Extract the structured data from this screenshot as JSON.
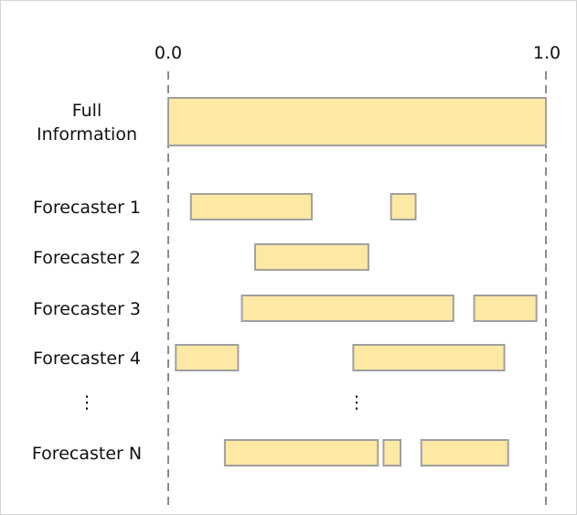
{
  "axis": {
    "left_label": "0.0",
    "right_label": "1.0"
  },
  "colors": {
    "bar_fill": "#fde8a4",
    "bar_stroke": "#a0a0a0",
    "guide": "#8c8c8c"
  },
  "rows": [
    {
      "label_lines": [
        "Full",
        "Information"
      ],
      "intervals": [
        [
          0.0,
          1.0
        ]
      ]
    },
    {
      "label_lines": [
        "Forecaster 1"
      ],
      "intervals": [
        [
          0.06,
          0.38
        ],
        [
          0.59,
          0.655
        ]
      ]
    },
    {
      "label_lines": [
        "Forecaster 2"
      ],
      "intervals": [
        [
          0.23,
          0.53
        ]
      ]
    },
    {
      "label_lines": [
        "Forecaster 3"
      ],
      "intervals": [
        [
          0.195,
          0.755
        ],
        [
          0.81,
          0.975
        ]
      ]
    },
    {
      "label_lines": [
        "Forecaster 4"
      ],
      "intervals": [
        [
          0.02,
          0.185
        ],
        [
          0.49,
          0.89
        ]
      ]
    },
    {
      "label_lines": [
        "⋮"
      ],
      "intervals": [],
      "ellipsis": true
    },
    {
      "label_lines": [
        "Forecaster N"
      ],
      "intervals": [
        [
          0.15,
          0.555
        ],
        [
          0.57,
          0.615
        ],
        [
          0.67,
          0.9
        ]
      ]
    }
  ],
  "ellipsis_symbol": "⋮"
}
